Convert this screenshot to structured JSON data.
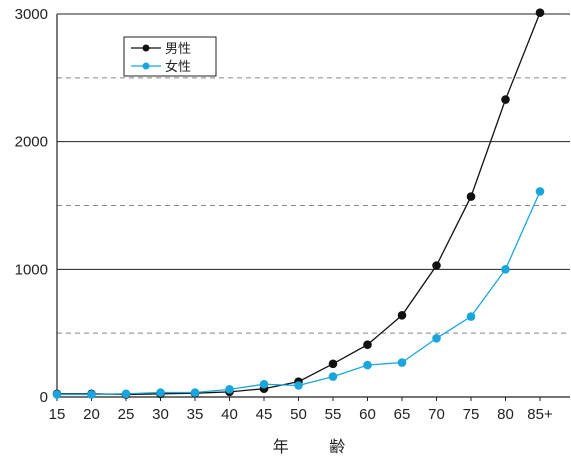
{
  "chart_data": {
    "type": "line",
    "xlabel": "年 齢",
    "ylabel": "",
    "categories": [
      "15",
      "20",
      "25",
      "30",
      "35",
      "40",
      "45",
      "50",
      "55",
      "60",
      "65",
      "70",
      "75",
      "80",
      "85+"
    ],
    "y_ticks": [
      "0",
      "1000",
      "2000",
      "3000"
    ],
    "ylim": [
      0,
      3000
    ],
    "minor_dashed_lines": [
      500,
      1500,
      2500
    ],
    "grid": "horizontal solid at 1000s, dashed at 500s",
    "legend": {
      "placement": "top-left"
    },
    "series": [
      {
        "name": "男性",
        "color": "#111111",
        "values": [
          25,
          25,
          20,
          25,
          30,
          40,
          65,
          120,
          260,
          410,
          640,
          1030,
          1570,
          2330,
          3010
        ]
      },
      {
        "name": "女性",
        "color": "#1aa6dd",
        "values": [
          20,
          20,
          25,
          35,
          35,
          60,
          100,
          90,
          160,
          250,
          270,
          460,
          630,
          1000,
          1610
        ]
      }
    ]
  }
}
